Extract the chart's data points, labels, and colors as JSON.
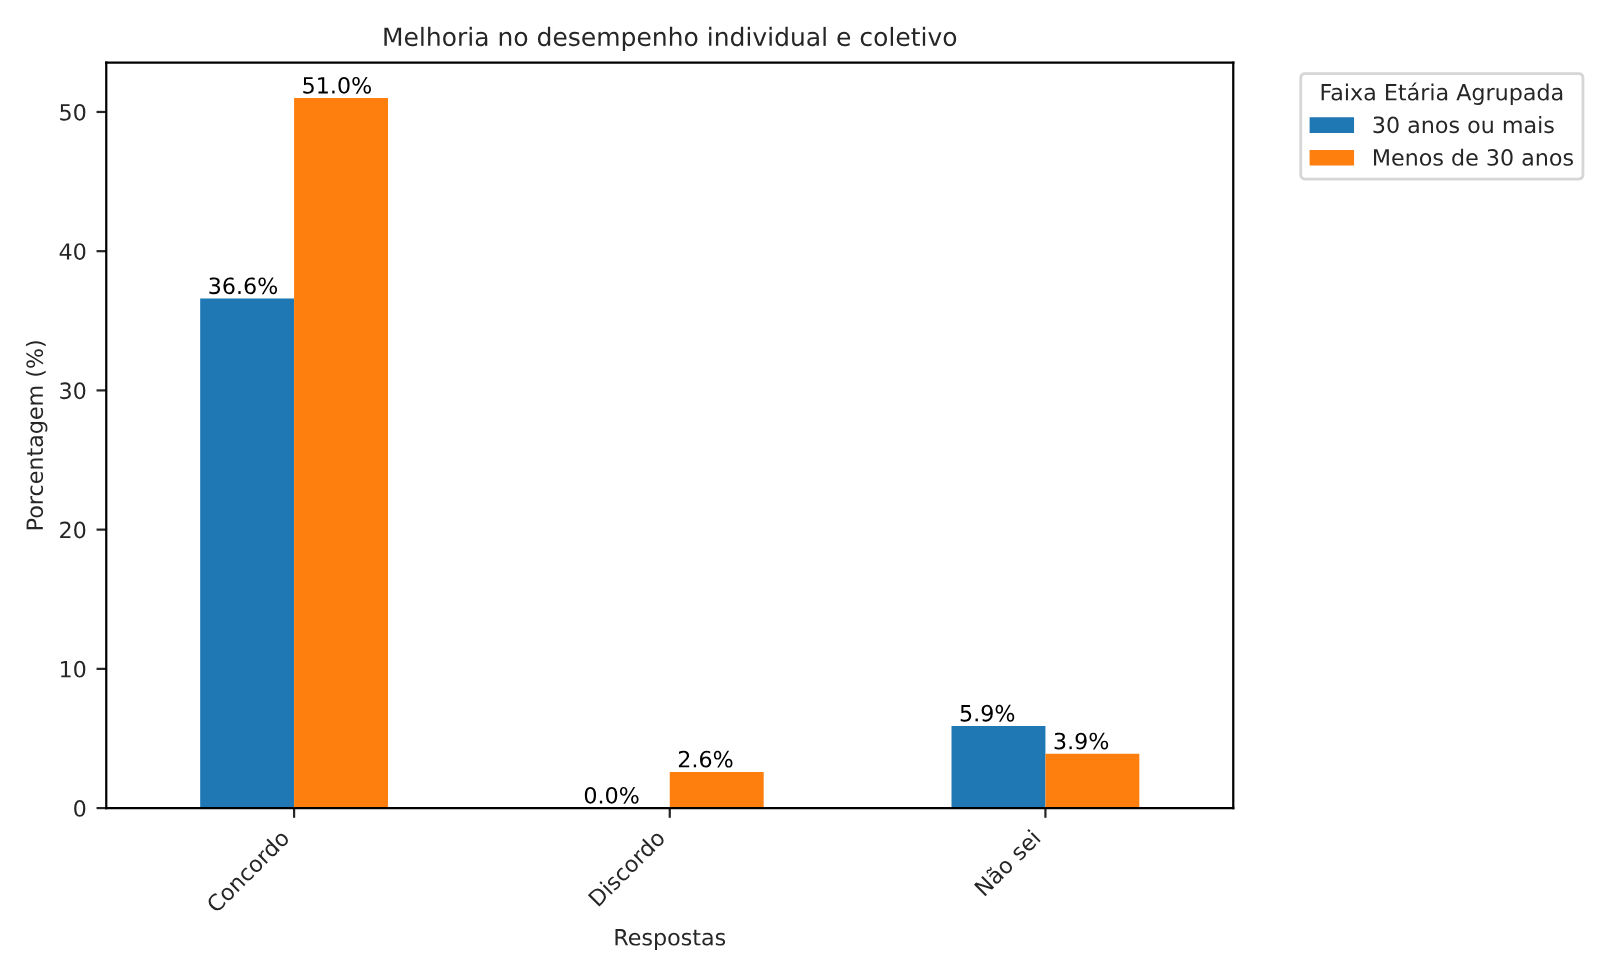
{
  "chart_data": {
    "type": "bar",
    "title": "Melhoria no desempenho individual e coletivo",
    "xlabel": "Respostas",
    "ylabel": "Porcentagem (%)",
    "legend_title": "Faixa Etária Agrupada",
    "categories": [
      "Concordo",
      "Discordo",
      "Não sei"
    ],
    "series": [
      {
        "name": "30 anos ou mais",
        "color": "#1f77b4",
        "values": [
          36.6,
          0.0,
          5.9
        ],
        "value_labels": [
          "36.6%",
          "0.0%",
          "5.9%"
        ]
      },
      {
        "name": "Menos de 30 anos",
        "color": "#ff7f0e",
        "values": [
          51.0,
          2.6,
          3.9
        ],
        "value_labels": [
          "51.0%",
          "2.6%",
          "3.9%"
        ]
      }
    ],
    "ylim": [
      0,
      53.55
    ],
    "yticks": [
      0,
      10,
      20,
      30,
      40,
      50
    ],
    "grid": false,
    "legend": "top right"
  }
}
